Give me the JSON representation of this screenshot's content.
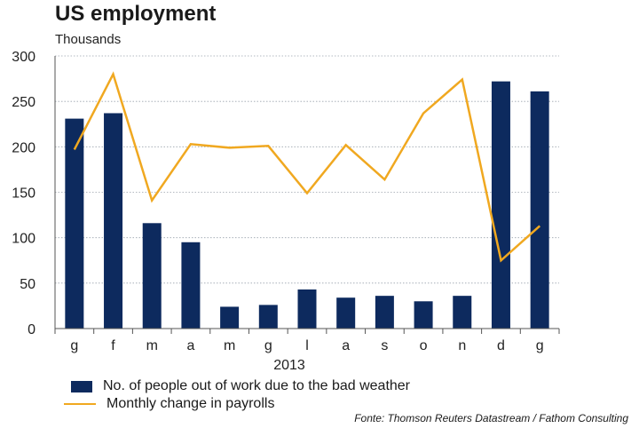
{
  "chart_data": {
    "type": "bar",
    "title": "US employment",
    "subtitle": "Thousands",
    "categories": [
      "g",
      "f",
      "m",
      "a",
      "m",
      "g",
      "l",
      "a",
      "s",
      "o",
      "n",
      "d",
      "g"
    ],
    "x_group_label": "2013",
    "ylim": [
      0,
      300
    ],
    "yticks": [
      0,
      50,
      100,
      150,
      200,
      250,
      300
    ],
    "grid": true,
    "series": [
      {
        "name": "No. of people out of work due to the bad weather",
        "type": "bar",
        "color": "#0d2a5e",
        "values": [
          231,
          237,
          116,
          95,
          24,
          26,
          43,
          34,
          36,
          30,
          36,
          272,
          261
        ]
      },
      {
        "name": "Monthly change in payrolls",
        "type": "line",
        "color": "#f0a820",
        "values": [
          197,
          280,
          141,
          203,
          199,
          201,
          149,
          202,
          164,
          237,
          274,
          75,
          113
        ]
      }
    ],
    "source": "Fonte: Thomson Reuters Datastream / Fathom Consulting",
    "legend_position": "bottom-left"
  }
}
